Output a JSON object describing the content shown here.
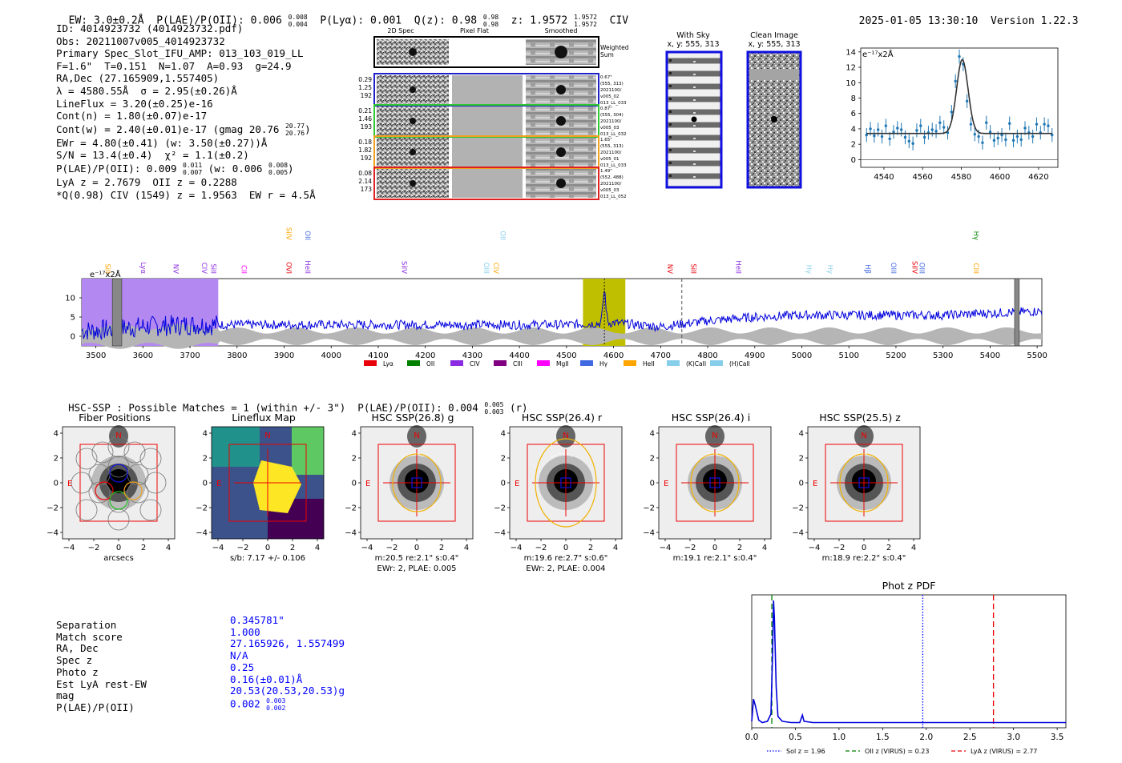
{
  "header": {
    "left": "EW: 3.0±0.2Å  P(LAE)/P(OII): 0.006 0.008/0.004  P(Lyα): 0.001  Q(z): 0.98 0.98/0.98  z: 1.9572 1.9572/1.9572  CIV",
    "ew": "EW: 3.0±0.2Å",
    "plae": "P(LAE)/P(OII): 0.006",
    "plae_hi": "0.008",
    "plae_lo": "0.004",
    "plya": "P(Lyα): 0.001",
    "qz": "Q(z): 0.98",
    "qz_hi": "0.98",
    "qz_lo": "0.98",
    "z": "z: 1.9572",
    "z_hi": "1.9572",
    "z_lo": "1.9572",
    "line": "CIV",
    "datetime": "2025-01-05 13:30:10",
    "version": "Version 1.22.3"
  },
  "info": {
    "id": "ID: 4014923732 (4014923732.pdf)",
    "obs": "Obs: 20211007v005_4014923732",
    "primary": "Primary Spec_Slot_IFU_AMP: 013_103_019_LL",
    "fwhm": "F=1.6\"  T=0.151  N=1.07  A=0.93  g=24.9",
    "radec": "RA,Dec (27.165909,1.557405)",
    "lambda": "λ = 4580.55Å  σ = 2.95(±0.26)Å",
    "lineflux": "LineFlux = 3.20(±0.25)e-16",
    "contn": "Cont(n) = 1.80(±0.07)e-17",
    "contw": "Cont(w) = 2.40(±0.01)e-17 (gmag 20.76",
    "contw_hi": "20.77",
    "contw_lo": "20.76",
    "contw_end": ")",
    "ewr": "EWr = 4.80(±0.41) (w: 3.50(±0.27))Å",
    "sn": "S/N = 13.4(±0.4)  χ² = 1.1(±0.2)",
    "plae": "P(LAE)/P(OII): 0.009",
    "plae_hi": "0.011",
    "plae_lo": "0.007",
    "plae_w": " (w: 0.006",
    "plae_w_hi": "0.008",
    "plae_w_lo": "0.005",
    "plae_end": ")",
    "lyaz": "LyA z = 2.7679  OII z = 0.2288",
    "qciv": "*Q(0.98) CIV (1549) z = 1.9563  EW r = 4.5Å"
  },
  "cutouts": {
    "col_titles": [
      "2D Spec",
      "Pixel Flat",
      "Smoothed"
    ],
    "weighted_sum": "Weighted Sum",
    "rows": [
      {
        "a": "0.29",
        "b": "1.25",
        "c": "192",
        "notes": [
          "0.67\"",
          "(555, 313)",
          "2021100/",
          "v005_02",
          "013_LL_033"
        ],
        "color": "#2020c8"
      },
      {
        "a": "0.21",
        "b": "1.46",
        "c": "193",
        "notes": [
          "0.87\"",
          "(555, 304)",
          "2021100/",
          "v005_03",
          "013_LL_032"
        ],
        "color": "#30c830"
      },
      {
        "a": "0.18",
        "b": "1.82",
        "c": "192",
        "notes": [
          "1.65\"",
          "(555, 313)",
          "2021100/",
          "v005_01",
          "013_LL_033"
        ],
        "color": "#f0a020"
      },
      {
        "a": "0.08",
        "b": "2.14",
        "c": "173",
        "notes": [
          "1.49\"",
          "(552, 488)",
          "2021100/",
          "v005_03",
          "013_LL_052"
        ],
        "color": "#e02020"
      }
    ]
  },
  "sky": {
    "with_sky_title": "With Sky",
    "with_sky_xy": "x, y: 555, 313",
    "clean_title": "Clean Image",
    "clean_xy": "x, y: 555, 313"
  },
  "zoom_chart": {
    "ylabel_unit": "e⁻¹⁷x2Å"
  },
  "legend": [
    {
      "name": "Lyα",
      "color": "#e8000b"
    },
    {
      "name": "OII",
      "color": "#008000"
    },
    {
      "name": "CIV",
      "color": "#8a2be2"
    },
    {
      "name": "CIII",
      "color": "#800080"
    },
    {
      "name": "MgII",
      "color": "#ff00ff"
    },
    {
      "name": "Hγ",
      "color": "#4169e1"
    },
    {
      "name": "HeII",
      "color": "#ffa500"
    },
    {
      "name": "(K)CaII",
      "color": "#87ceeb"
    },
    {
      "name": "(H)CaII",
      "color": "#87ceeb"
    }
  ],
  "spec_unit": "e⁻¹⁷x2Å",
  "hsc": {
    "line": "HSC-SSP : Possible Matches = 1 (within +/- 3\")  P(LAE)/P(OII): 0.004",
    "hi": "0.005",
    "lo": "0.003",
    "filt": "(r)"
  },
  "thumbs": [
    {
      "title": "Fiber Positions",
      "cap1": "arcsecs",
      "cap2": ""
    },
    {
      "title": "Lineflux Map",
      "cap1": "s/b: 7.17 +/- 0.106",
      "cap2": ""
    },
    {
      "title": "HSC SSP(26.8) g",
      "cap1": "m:20.5  re:2.1\"  s:0.4\"",
      "cap2": "EWr: 2, PLAE: 0.005"
    },
    {
      "title": "HSC SSP(26.4) r",
      "cap1": "m:19.6  re:2.7\"  s:0.6\"",
      "cap2": "EWr: 2, PLAE: 0.004"
    },
    {
      "title": "HSC SSP(26.4) i",
      "cap1": "m:19.1  re:2.1\"  s:0.4\"",
      "cap2": ""
    },
    {
      "title": "HSC SSP(25.5) z",
      "cap1": "m:18.9  re:2.2\"  s:0.4\"",
      "cap2": ""
    }
  ],
  "thumb_axis": {
    "ticks": [
      "4",
      "2",
      "0",
      "−2",
      "−4"
    ],
    "xticks": [
      "−4",
      "−2",
      "0",
      "2",
      "4"
    ],
    "n": "N",
    "e": "E"
  },
  "match": {
    "labels": [
      "Separation",
      "Match score",
      "RA, Dec",
      "Spec z",
      "Photo z",
      "Est LyA rest-EW",
      "mag",
      "P(LAE)/P(OII)"
    ],
    "values": [
      "0.345781\"",
      "1.000",
      "27.165926, 1.557499",
      "N/A",
      "0.25",
      "0.16(±0.01)Å",
      "20.53(20.53,20.53)g",
      "0.002"
    ],
    "plae_hi": "0.003",
    "plae_lo": "0.002"
  },
  "chart_data": [
    {
      "type": "line",
      "title": "",
      "ylabel": "e⁻¹⁷x2Å",
      "xlim": [
        4528,
        4630
      ],
      "ylim": [
        -1,
        14.5
      ],
      "xticks": [
        4540,
        4560,
        4580,
        4600,
        4620
      ],
      "yticks": [
        0,
        2,
        4,
        6,
        8,
        10,
        12,
        14
      ],
      "fit": {
        "center": 4580.55,
        "sigma": 2.95,
        "amp": 9.6,
        "cont": 3.4
      },
      "points_x": [
        4531,
        4533,
        4535,
        4537,
        4539,
        4541,
        4543,
        4545,
        4547,
        4549,
        4551,
        4553,
        4555,
        4557,
        4559,
        4561,
        4563,
        4565,
        4567,
        4569,
        4571,
        4573,
        4575,
        4577,
        4579,
        4581,
        4583,
        4585,
        4587,
        4589,
        4591,
        4593,
        4595,
        4597,
        4599,
        4601,
        4603,
        4605,
        4607,
        4609,
        4611,
        4613,
        4615,
        4617,
        4619,
        4621,
        4623,
        4625,
        4627
      ],
      "points_y": [
        3.2,
        4.0,
        3.1,
        3.9,
        3.0,
        4.4,
        2.7,
        3.6,
        4.1,
        3.9,
        2.9,
        2.4,
        2.1,
        3.8,
        4.4,
        2.9,
        3.5,
        3.9,
        3.7,
        4.8,
        4.2,
        3.5,
        6.2,
        10.2,
        13.4,
        12.4,
        7.6,
        4.6,
        3.3,
        3.0,
        2.2,
        4.8,
        3.6,
        2.5,
        2.8,
        3.2,
        2.6,
        4.7,
        2.5,
        3.0,
        2.6,
        4.1,
        3.5,
        3.0,
        4.6,
        3.5,
        4.6,
        4.4,
        3.2
      ],
      "errors": 0.9
    },
    {
      "type": "line",
      "title": "",
      "ylabel": "e⁻¹⁷x2Å",
      "xlim": [
        3470,
        5510
      ],
      "ylim": [
        -2.5,
        15
      ],
      "xticks": [
        3500,
        3600,
        3700,
        3800,
        3900,
        4000,
        4100,
        4200,
        4300,
        4400,
        4500,
        4600,
        4700,
        4800,
        4900,
        5000,
        5100,
        5200,
        5300,
        5400,
        5500
      ],
      "yticks": [
        0,
        5,
        10
      ],
      "shaded_regions": [
        {
          "from": 3470,
          "to": 3760,
          "color": "#b388f0"
        },
        {
          "from": 4535,
          "to": 4625,
          "color": "#bfbf00"
        }
      ],
      "emission_peak": {
        "x": 4580.5,
        "y": 11.5
      },
      "mean_level": [
        1.5,
        2.5,
        3.0,
        3.0,
        3.0,
        3.0,
        3.0,
        3.0,
        3.0,
        3.0,
        3.0,
        3.5,
        2.5,
        4.0,
        5.0,
        5.5,
        5.5,
        5.5,
        5.5,
        6.0,
        6.5
      ],
      "line_markers": [
        {
          "name": "SiII",
          "x": 3520,
          "color": "#ffa500"
        },
        {
          "name": "Lyα",
          "x": 3596,
          "color": "#8a2be2"
        },
        {
          "name": "NV",
          "x": 3665,
          "color": "#8a2be2"
        },
        {
          "name": "CIV",
          "x": 3725,
          "color": "#8a2be2"
        },
        {
          "name": "SiII",
          "x": 3745,
          "color": "#8a2be2"
        },
        {
          "name": "CII",
          "x": 3810,
          "color": "#ff00ff"
        },
        {
          "name": "OVI",
          "x": 3905,
          "color": "#e8000b"
        },
        {
          "name": "SiIV",
          "x": 3905,
          "color": "#ffa500"
        },
        {
          "name": "HeII",
          "x": 3945,
          "color": "#8a2be2"
        },
        {
          "name": "OII",
          "x": 3945,
          "color": "#4169e1"
        },
        {
          "name": "SiIV",
          "x": 4150,
          "color": "#8a2be2"
        },
        {
          "name": "OIII",
          "x": 4325,
          "color": "#87ceeb"
        },
        {
          "name": "CIV",
          "x": 4345,
          "color": "#ffa500"
        },
        {
          "name": "OII",
          "x": 4360,
          "color": "#87ceeb"
        },
        {
          "name": "NV",
          "x": 4715,
          "color": "#e8000b"
        },
        {
          "name": "SiII",
          "x": 4765,
          "color": "#e8000b"
        },
        {
          "name": "HeII",
          "x": 4860,
          "color": "#8a2be2"
        },
        {
          "name": "Hγ",
          "x": 5010,
          "color": "#87ceeb"
        },
        {
          "name": "Hγ",
          "x": 5055,
          "color": "#87ceeb"
        },
        {
          "name": "Hβ",
          "x": 5135,
          "color": "#4169e1"
        },
        {
          "name": "OIII",
          "x": 5190,
          "color": "#4169e1"
        },
        {
          "name": "SiIV",
          "x": 5235,
          "color": "#e8000b"
        },
        {
          "name": "OIII",
          "x": 5250,
          "color": "#4169e1"
        },
        {
          "name": "CIII",
          "x": 5365,
          "color": "#ffa500"
        },
        {
          "name": "Hγ",
          "x": 5365,
          "color": "#008000"
        }
      ],
      "legend": [
        "Lyα",
        "OII",
        "CIV",
        "CIII",
        "MgII",
        "Hγ",
        "HeII",
        "(K)CaII",
        "(H)CaII"
      ]
    },
    {
      "type": "line",
      "title": "Phot z PDF",
      "xlim": [
        0,
        3.6
      ],
      "xticks": [
        0.0,
        0.5,
        1.0,
        1.5,
        2.0,
        2.5,
        3.0,
        3.5
      ],
      "xticklabels": [
        "0.0",
        "0.5",
        "1.0",
        "1.5",
        "2.0",
        "2.5",
        "3.0",
        "3.5"
      ],
      "vlines": [
        {
          "name": "Sol z = 1.96",
          "x": 1.96,
          "color": "#0000ff",
          "style": "dotted"
        },
        {
          "name": "OII z (VIRUS) = 0.23",
          "x": 0.23,
          "color": "#008000",
          "style": "dashed"
        },
        {
          "name": "LyA z (VIRUS) = 2.77",
          "x": 2.77,
          "color": "#e8000b",
          "style": "dashed"
        }
      ],
      "pdf": [
        [
          0.0,
          0.02
        ],
        [
          0.02,
          0.2
        ],
        [
          0.04,
          0.15
        ],
        [
          0.08,
          0.03
        ],
        [
          0.12,
          0.01
        ],
        [
          0.18,
          0.02
        ],
        [
          0.22,
          0.08
        ],
        [
          0.24,
          0.6
        ],
        [
          0.25,
          1.0
        ],
        [
          0.26,
          0.85
        ],
        [
          0.28,
          0.3
        ],
        [
          0.3,
          0.06
        ],
        [
          0.35,
          0.02
        ],
        [
          0.45,
          0.01
        ],
        [
          0.55,
          0.01
        ],
        [
          0.58,
          0.07
        ],
        [
          0.6,
          0.02
        ],
        [
          0.7,
          0.01
        ],
        [
          1.0,
          0.01
        ],
        [
          3.6,
          0.01
        ]
      ]
    }
  ]
}
